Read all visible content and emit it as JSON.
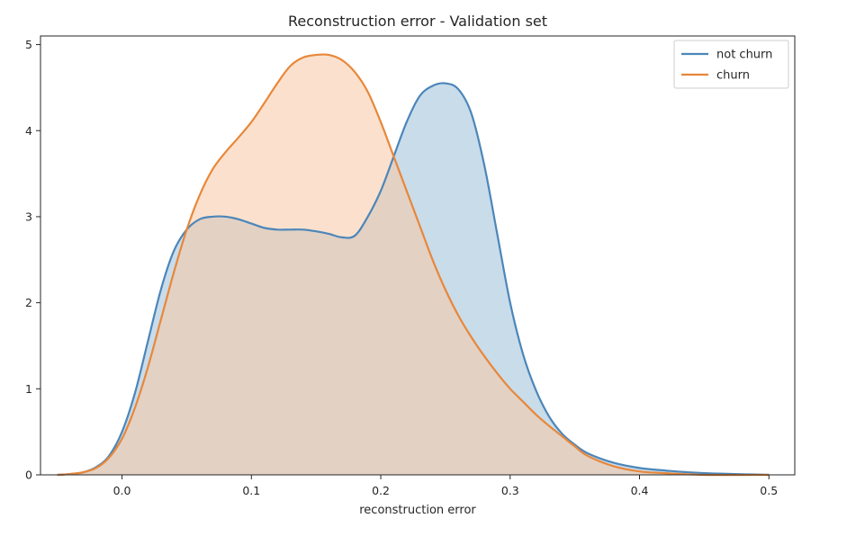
{
  "chart_data": {
    "type": "area",
    "title": "Reconstruction error - Validation set",
    "xlabel": "reconstruction error",
    "ylabel": "",
    "xlim": [
      -0.063,
      0.52
    ],
    "ylim": [
      0,
      5.1
    ],
    "xticks": [
      0.0,
      0.1,
      0.2,
      0.3,
      0.4,
      0.5
    ],
    "xtick_labels": [
      "0.0",
      "0.1",
      "0.2",
      "0.3",
      "0.4",
      "0.5"
    ],
    "yticks": [
      0,
      1,
      2,
      3,
      4,
      5
    ],
    "ytick_labels": [
      "0",
      "1",
      "2",
      "3",
      "4",
      "5"
    ],
    "grid": false,
    "legend": {
      "placement": "top-right",
      "entries": [
        "not churn",
        "churn"
      ]
    },
    "series": [
      {
        "name": "not churn",
        "color": "#4c86b9",
        "fill_color": "#9dbfd9",
        "x": [
          -0.05,
          -0.04,
          -0.03,
          -0.02,
          -0.01,
          0.0,
          0.01,
          0.02,
          0.03,
          0.04,
          0.05,
          0.06,
          0.07,
          0.08,
          0.09,
          0.1,
          0.11,
          0.12,
          0.13,
          0.14,
          0.15,
          0.16,
          0.17,
          0.18,
          0.19,
          0.2,
          0.21,
          0.22,
          0.23,
          0.24,
          0.25,
          0.26,
          0.27,
          0.28,
          0.29,
          0.3,
          0.31,
          0.32,
          0.33,
          0.34,
          0.35,
          0.36,
          0.38,
          0.4,
          0.42,
          0.45,
          0.5
        ],
        "values": [
          0.0,
          0.01,
          0.03,
          0.09,
          0.22,
          0.5,
          0.95,
          1.55,
          2.15,
          2.6,
          2.85,
          2.97,
          3.0,
          3.0,
          2.97,
          2.92,
          2.87,
          2.85,
          2.85,
          2.85,
          2.83,
          2.8,
          2.76,
          2.78,
          3.0,
          3.3,
          3.7,
          4.1,
          4.4,
          4.52,
          4.55,
          4.48,
          4.2,
          3.6,
          2.8,
          2.0,
          1.4,
          0.98,
          0.68,
          0.48,
          0.35,
          0.25,
          0.14,
          0.08,
          0.05,
          0.02,
          0.0
        ]
      },
      {
        "name": "churn",
        "color": "#e8873a",
        "fill_color": "#f8c9a4",
        "x": [
          -0.05,
          -0.04,
          -0.03,
          -0.02,
          -0.01,
          0.0,
          0.01,
          0.02,
          0.03,
          0.04,
          0.05,
          0.06,
          0.07,
          0.08,
          0.09,
          0.1,
          0.11,
          0.12,
          0.13,
          0.14,
          0.15,
          0.16,
          0.17,
          0.18,
          0.19,
          0.2,
          0.21,
          0.22,
          0.23,
          0.24,
          0.25,
          0.26,
          0.27,
          0.28,
          0.29,
          0.3,
          0.31,
          0.32,
          0.33,
          0.34,
          0.35,
          0.36,
          0.38,
          0.4,
          0.42,
          0.45,
          0.5
        ],
        "values": [
          0.0,
          0.01,
          0.03,
          0.08,
          0.2,
          0.42,
          0.78,
          1.25,
          1.8,
          2.35,
          2.85,
          3.25,
          3.55,
          3.75,
          3.92,
          4.1,
          4.32,
          4.55,
          4.75,
          4.85,
          4.88,
          4.88,
          4.82,
          4.68,
          4.45,
          4.1,
          3.7,
          3.3,
          2.9,
          2.5,
          2.15,
          1.85,
          1.6,
          1.38,
          1.18,
          1.0,
          0.85,
          0.7,
          0.57,
          0.45,
          0.33,
          0.22,
          0.1,
          0.04,
          0.02,
          0.0,
          0.0
        ]
      }
    ]
  }
}
